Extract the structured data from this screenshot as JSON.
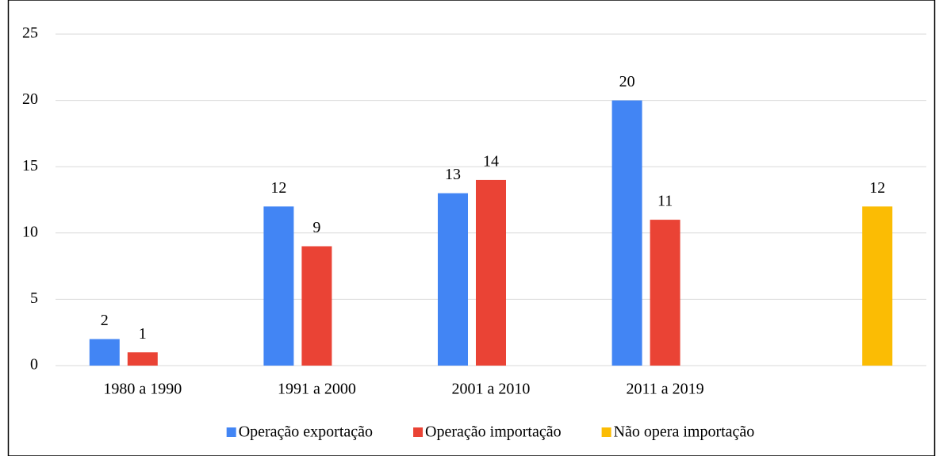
{
  "chart_data": {
    "type": "bar",
    "categories": [
      "1980 a 1990",
      "1991 a 2000",
      "2001 a 2010",
      "2011 a 2019",
      null
    ],
    "series": [
      {
        "name": "Operação exportação",
        "color": "#4285f4",
        "values": [
          2,
          12,
          13,
          20,
          null
        ]
      },
      {
        "name": "Operação importação",
        "color": "#ea4335",
        "values": [
          1,
          9,
          14,
          11,
          null
        ]
      },
      {
        "name": "Não opera importação",
        "color": "#fbbc04",
        "values": [
          null,
          null,
          null,
          null,
          12
        ]
      }
    ],
    "ylim": [
      0,
      25
    ],
    "yticks": [
      0,
      5,
      10,
      15,
      20,
      25
    ],
    "grid": true,
    "legend": "bottom"
  }
}
